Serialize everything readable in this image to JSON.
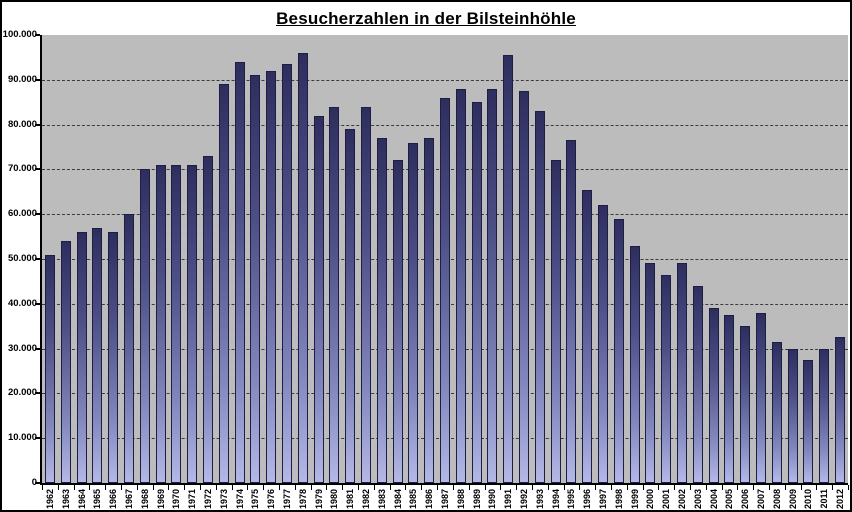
{
  "page": {
    "background": "#ffffff",
    "border_color": "#000000"
  },
  "title": "Besucherzahlen in der Bilsteinhöhle",
  "chart_data": {
    "type": "bar",
    "title": "Besucherzahlen in der Bilsteinhöhle",
    "categories": [
      "1962",
      "1963",
      "1964",
      "1965",
      "1966",
      "1967",
      "1968",
      "1969",
      "1970",
      "1971",
      "1972",
      "1973",
      "1974",
      "1975",
      "1976",
      "1977",
      "1978",
      "1979",
      "1980",
      "1981",
      "1982",
      "1983",
      "1984",
      "1985",
      "1986",
      "1987",
      "1988",
      "1989",
      "1990",
      "1991",
      "1992",
      "1993",
      "1994",
      "1995",
      "1996",
      "1997",
      "1998",
      "1999",
      "2000",
      "2001",
      "2002",
      "2003",
      "2004",
      "2005",
      "2006",
      "2007",
      "2008",
      "2009",
      "2010",
      "2011",
      "2012"
    ],
    "values": [
      51000,
      54000,
      56000,
      57000,
      56000,
      60000,
      70000,
      71000,
      71000,
      71000,
      73000,
      89000,
      94000,
      91000,
      92000,
      93500,
      96000,
      82000,
      84000,
      79000,
      84000,
      77000,
      72000,
      76000,
      77000,
      86000,
      88000,
      85000,
      88000,
      95500,
      87500,
      83000,
      72000,
      76500,
      65500,
      62000,
      59000,
      53000,
      49000,
      46500,
      49000,
      44000,
      39000,
      37500,
      35000,
      38000,
      31500,
      30000,
      27500,
      30000,
      32500
    ],
    "xlabel": "",
    "ylabel": "",
    "ylim": [
      0,
      100000
    ],
    "ytick_interval": 10000,
    "ytick_labels_bottom_to_top": [
      "0",
      "10.000",
      "20.000",
      "30.000",
      "40.000",
      "50.000",
      "60.000",
      "70.000",
      "80.000",
      "90.000",
      "100.000"
    ],
    "grid": "horizontal-dashed",
    "legend": "none",
    "style": {
      "bar_color_top": "#2e2e5e",
      "bar_color_bottom": "#b3b8e6",
      "bar_border_color": "#1e1e44",
      "plot_background": "#bcbcbc",
      "gridline_color": "#3c3c3c",
      "axis_color": "#000000",
      "label_color": "#000000"
    }
  }
}
